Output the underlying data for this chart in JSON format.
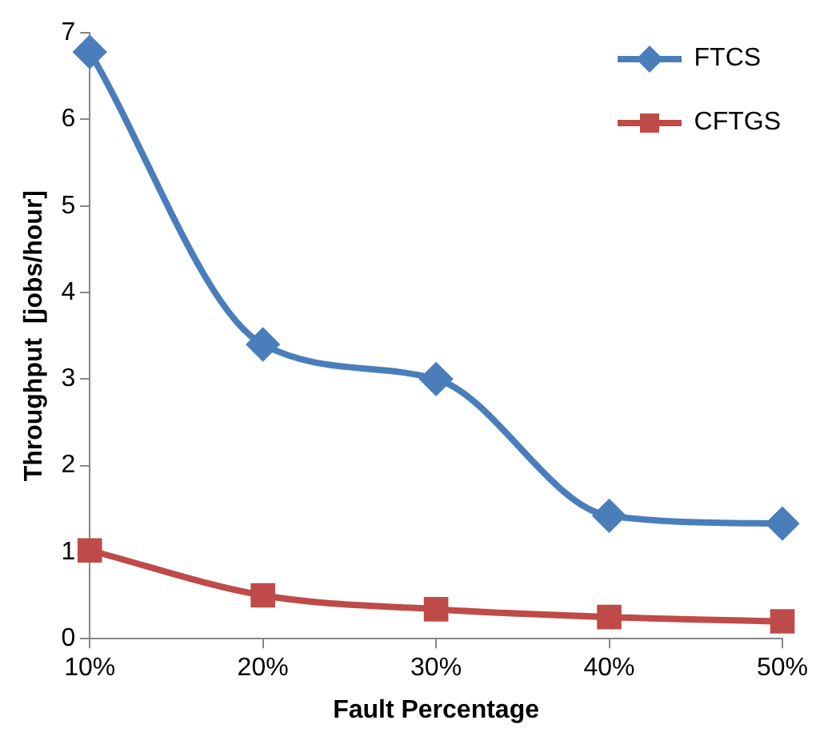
{
  "chart_data": {
    "type": "line",
    "xlabel": "Fault Percentage",
    "ylabel": "Throughput  [jobs/hour]",
    "categories": [
      "10%",
      "20%",
      "30%",
      "40%",
      "50%"
    ],
    "series": [
      {
        "name": "FTCS",
        "color": "#4a7ebb",
        "marker": "diamond",
        "values": [
          6.78,
          3.4,
          3.0,
          1.42,
          1.33
        ]
      },
      {
        "name": "CFTGS",
        "color": "#be4b48",
        "marker": "square",
        "values": [
          1.02,
          0.5,
          0.34,
          0.25,
          0.2
        ]
      }
    ],
    "ylim": [
      0,
      7
    ],
    "yticks": [
      0,
      1,
      2,
      3,
      4,
      5,
      6,
      7
    ],
    "grid": false,
    "legend": "top right"
  }
}
